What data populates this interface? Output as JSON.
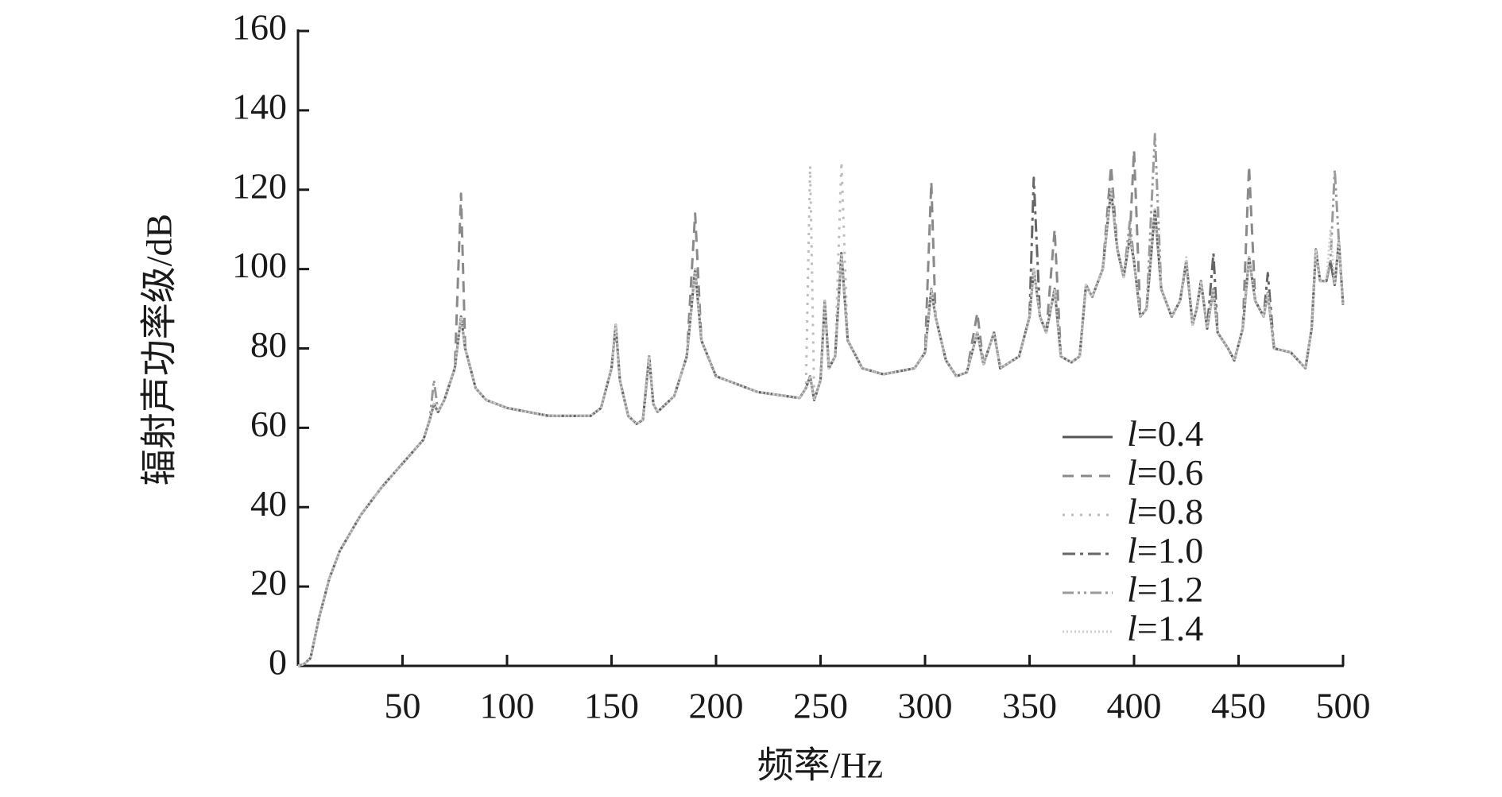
{
  "chart_data": {
    "type": "line",
    "x_label": "频率/Hz",
    "y_label": "辐射声功率级/dB",
    "xlim": [
      0,
      500
    ],
    "ylim": [
      0,
      160
    ],
    "xticks": [
      50,
      100,
      150,
      200,
      250,
      300,
      350,
      400,
      450,
      500
    ],
    "yticks": [
      0,
      20,
      40,
      60,
      80,
      100,
      120,
      140,
      160
    ],
    "grid": false,
    "legend": "lower right",
    "x": [
      0,
      3,
      6,
      10,
      15,
      20,
      30,
      40,
      50,
      60,
      63,
      65,
      67,
      70,
      75,
      78,
      80,
      85,
      90,
      100,
      120,
      140,
      145,
      150,
      152,
      154,
      158,
      162,
      165,
      168,
      170,
      172,
      180,
      186,
      190,
      193,
      200,
      220,
      240,
      243,
      245,
      247,
      250,
      252,
      254,
      257,
      260,
      263,
      270,
      280,
      295,
      300,
      303,
      305,
      310,
      315,
      320,
      325,
      328,
      333,
      336,
      345,
      350,
      352,
      355,
      358,
      362,
      365,
      370,
      374,
      377,
      380,
      385,
      389,
      392,
      395,
      398,
      400,
      403,
      406,
      410,
      413,
      418,
      422,
      425,
      428,
      430,
      432,
      435,
      438,
      440,
      445,
      448,
      452,
      455,
      458,
      462,
      464,
      467,
      475,
      482,
      485,
      487,
      489,
      492,
      494,
      496,
      498,
      500
    ],
    "series": [
      {
        "name": "l=0.4",
        "color": "#555555",
        "dash": "none",
        "values": [
          0,
          0.5,
          2,
          12,
          22,
          29,
          38,
          45,
          51,
          57,
          62,
          66,
          64,
          67,
          75,
          88,
          80,
          70,
          67,
          65,
          63,
          63,
          65,
          75,
          86,
          72,
          63,
          61,
          62,
          78,
          66,
          64,
          68,
          78,
          100,
          82,
          73,
          69,
          67.5,
          70,
          73,
          67,
          72,
          92,
          75,
          78,
          104,
          82,
          75,
          73.5,
          75,
          79,
          95,
          88,
          77,
          73,
          74,
          84,
          76,
          84,
          75,
          78,
          88,
          100,
          88,
          84,
          95,
          78,
          76.5,
          78,
          96,
          93,
          100,
          120,
          105,
          98,
          108,
          102,
          88,
          90,
          115,
          95,
          88,
          92,
          102,
          86,
          90,
          97,
          85,
          95,
          84,
          80,
          77,
          85,
          103,
          92,
          88,
          94,
          80,
          79,
          75,
          85,
          105,
          97,
          97,
          102,
          96,
          107,
          91
        ]
      },
      {
        "name": "l=0.6",
        "color": "#8a8a8a",
        "dash": "14,9",
        "values": [
          0,
          0.5,
          2,
          12,
          22,
          29,
          38,
          45,
          51,
          57,
          62,
          66,
          64,
          67,
          75,
          119,
          80,
          70,
          67,
          65,
          63,
          63,
          65,
          75,
          86,
          72,
          63,
          61,
          62,
          78,
          66,
          64,
          68,
          78,
          114,
          82,
          73,
          69,
          67.5,
          70,
          73,
          67,
          72,
          92,
          75,
          78,
          104,
          82,
          75,
          73.5,
          75,
          79,
          122,
          88,
          77,
          73,
          74,
          89,
          76,
          84,
          75,
          78,
          88,
          100,
          88,
          84,
          110,
          78,
          76.5,
          78,
          96,
          93,
          100,
          126,
          105,
          98,
          108,
          130,
          88,
          90,
          115,
          95,
          88,
          92,
          102,
          86,
          90,
          97,
          85,
          95,
          84,
          80,
          77,
          85,
          126,
          92,
          88,
          94,
          80,
          79,
          75,
          85,
          105,
          97,
          97,
          102,
          96,
          107,
          91
        ]
      },
      {
        "name": "l=0.8",
        "color": "#bdbdbd",
        "dash": "3,8",
        "values": [
          0,
          0.5,
          2,
          12,
          22,
          29,
          38,
          45,
          51,
          57,
          62,
          66,
          64,
          67,
          75,
          88,
          80,
          70,
          67,
          65,
          63,
          63,
          65,
          75,
          86,
          72,
          63,
          61,
          62,
          78,
          66,
          64,
          68,
          78,
          100,
          82,
          73,
          69,
          67.5,
          70,
          126,
          67,
          72,
          92,
          75,
          78,
          127,
          82,
          75,
          73.5,
          75,
          79,
          95,
          88,
          77,
          73,
          74,
          84,
          76,
          84,
          75,
          78,
          88,
          100,
          88,
          84,
          95,
          78,
          76.5,
          78,
          96,
          93,
          100,
          120,
          105,
          98,
          108,
          102,
          88,
          90,
          115,
          95,
          88,
          92,
          102,
          86,
          90,
          97,
          85,
          95,
          84,
          80,
          77,
          85,
          103,
          92,
          88,
          94,
          80,
          79,
          75,
          85,
          105,
          97,
          97,
          102,
          96,
          107,
          91
        ]
      },
      {
        "name": "l=1.0",
        "color": "#666666",
        "dash": "16,6,4,6",
        "values": [
          0,
          0.5,
          2,
          12,
          22,
          29,
          38,
          45,
          51,
          57,
          62,
          66,
          64,
          67,
          75,
          88,
          80,
          70,
          67,
          65,
          63,
          63,
          65,
          75,
          86,
          72,
          63,
          61,
          62,
          78,
          66,
          64,
          68,
          78,
          100,
          82,
          73,
          69,
          67.5,
          70,
          73,
          67,
          72,
          92,
          75,
          78,
          104,
          82,
          75,
          73.5,
          75,
          79,
          95,
          88,
          77,
          73,
          74,
          84,
          76,
          84,
          75,
          78,
          88,
          123,
          88,
          84,
          95,
          78,
          76.5,
          78,
          96,
          93,
          100,
          120,
          105,
          98,
          108,
          102,
          88,
          90,
          115,
          95,
          88,
          92,
          102,
          86,
          90,
          97,
          85,
          104,
          84,
          80,
          77,
          85,
          103,
          92,
          88,
          99,
          80,
          79,
          75,
          85,
          105,
          97,
          97,
          102,
          96,
          107,
          91
        ]
      },
      {
        "name": "l=1.2",
        "color": "#9a9a9a",
        "dash": "14,5,3,5,3,5",
        "values": [
          0,
          0.5,
          2,
          12,
          22,
          29,
          38,
          45,
          51,
          57,
          62,
          72,
          64,
          67,
          75,
          88,
          80,
          70,
          67,
          65,
          63,
          63,
          65,
          75,
          86,
          72,
          63,
          61,
          62,
          78,
          66,
          64,
          68,
          78,
          100,
          82,
          73,
          69,
          67.5,
          70,
          73,
          67,
          72,
          92,
          75,
          78,
          104,
          82,
          75,
          73.5,
          75,
          79,
          95,
          88,
          77,
          73,
          74,
          84,
          76,
          84,
          75,
          78,
          88,
          100,
          88,
          84,
          95,
          78,
          76.5,
          78,
          96,
          93,
          100,
          120,
          105,
          98,
          112,
          102,
          88,
          90,
          134,
          95,
          88,
          92,
          102,
          86,
          90,
          97,
          85,
          95,
          84,
          80,
          77,
          85,
          103,
          92,
          88,
          94,
          80,
          79,
          75,
          85,
          105,
          97,
          97,
          102,
          125,
          107,
          91
        ]
      },
      {
        "name": "l=1.4",
        "color": "#cfcfcf",
        "dash": "2,3",
        "values": [
          0,
          0.5,
          2,
          12,
          22,
          29,
          38,
          45,
          51,
          57,
          62,
          66,
          64,
          67,
          75,
          88,
          80,
          70,
          67,
          65,
          63,
          63,
          65,
          75,
          86,
          72,
          63,
          61,
          62,
          78,
          66,
          64,
          68,
          78,
          100,
          82,
          73,
          69,
          67.5,
          70,
          73,
          67,
          72,
          92,
          75,
          78,
          104,
          82,
          75,
          73.5,
          75,
          79,
          95,
          88,
          77,
          73,
          74,
          84,
          76,
          84,
          75,
          78,
          88,
          100,
          88,
          84,
          95,
          78,
          76.5,
          78,
          96,
          93,
          100,
          120,
          105,
          98,
          108,
          102,
          88,
          90,
          115,
          95,
          88,
          92,
          103,
          86,
          90,
          97,
          85,
          95,
          84,
          80,
          77,
          85,
          103,
          92,
          88,
          94,
          80,
          79,
          75,
          85,
          105,
          97,
          97,
          110,
          96,
          107,
          91
        ]
      }
    ]
  }
}
